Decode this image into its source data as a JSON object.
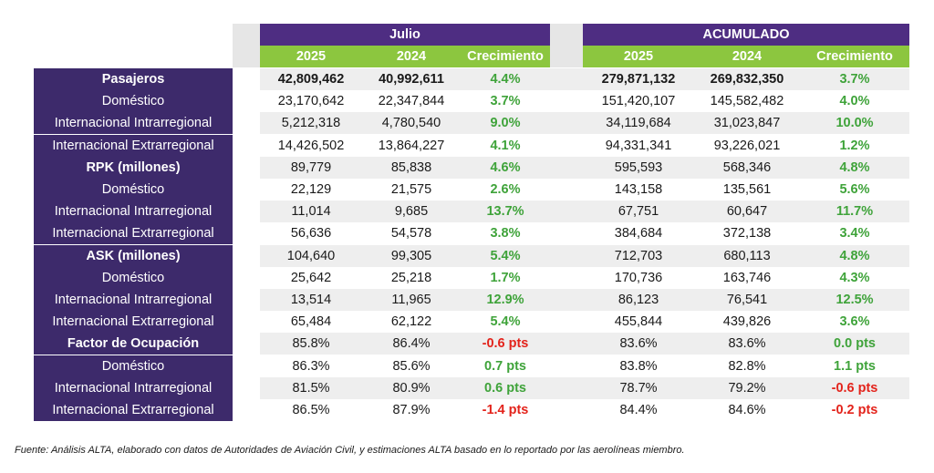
{
  "header": {
    "julio_label": "Julio",
    "acumulado_label": "ACUMULADO",
    "sub": [
      "2025",
      "2024",
      "Crecimiento",
      "2025",
      "2024",
      "Crecimiento"
    ]
  },
  "rows": [
    {
      "label": "Pasajeros",
      "main": true,
      "v": [
        "42,809,462",
        "40,992,611",
        "4.4%",
        "279,871,132",
        "269,832,350",
        "3.7%"
      ]
    },
    {
      "label": "Doméstico",
      "main": false,
      "v": [
        "23,170,642",
        "22,347,844",
        "3.7%",
        "151,420,107",
        "145,582,482",
        "4.0%"
      ]
    },
    {
      "label": "Internacional Intrarregional",
      "main": false,
      "v": [
        "5,212,318",
        "4,780,540",
        "9.0%",
        "34,119,684",
        "31,023,847",
        "10.0%"
      ]
    },
    {
      "label": "Internacional Extrarregional",
      "main": false,
      "v": [
        "14,426,502",
        "13,864,227",
        "4.1%",
        "94,331,341",
        "93,226,021",
        "1.2%"
      ]
    },
    {
      "label": "RPK (millones)",
      "main": true,
      "v": [
        "89,779",
        "85,838",
        "4.6%",
        "595,593",
        "568,346",
        "4.8%"
      ]
    },
    {
      "label": "Doméstico",
      "main": false,
      "v": [
        "22,129",
        "21,575",
        "2.6%",
        "143,158",
        "135,561",
        "5.6%"
      ]
    },
    {
      "label": "Internacional Intrarregional",
      "main": false,
      "v": [
        "11,014",
        "9,685",
        "13.7%",
        "67,751",
        "60,647",
        "11.7%"
      ]
    },
    {
      "label": "Internacional Extrarregional",
      "main": false,
      "v": [
        "56,636",
        "54,578",
        "3.8%",
        "384,684",
        "372,138",
        "3.4%"
      ]
    },
    {
      "label": "ASK (millones)",
      "main": true,
      "v": [
        "104,640",
        "99,305",
        "5.4%",
        "712,703",
        "680,113",
        "4.8%"
      ]
    },
    {
      "label": "Doméstico",
      "main": false,
      "v": [
        "25,642",
        "25,218",
        "1.7%",
        "170,736",
        "163,746",
        "4.3%"
      ]
    },
    {
      "label": "Internacional Intrarregional",
      "main": false,
      "v": [
        "13,514",
        "11,965",
        "12.9%",
        "86,123",
        "76,541",
        "12.5%"
      ]
    },
    {
      "label": "Internacional Extrarregional",
      "main": false,
      "v": [
        "65,484",
        "62,122",
        "5.4%",
        "455,844",
        "439,826",
        "3.6%"
      ]
    },
    {
      "label": "Factor de Ocupación",
      "main": true,
      "v": [
        "85.8%",
        "86.4%",
        "-0.6 pts",
        "83.6%",
        "83.6%",
        "0.0 pts"
      ]
    },
    {
      "label": "Doméstico",
      "main": false,
      "v": [
        "86.3%",
        "85.6%",
        "0.7 pts",
        "83.8%",
        "82.8%",
        "1.1 pts"
      ]
    },
    {
      "label": "Internacional Intrarregional",
      "main": false,
      "v": [
        "81.5%",
        "80.9%",
        "0.6 pts",
        "78.7%",
        "79.2%",
        "-0.6 pts"
      ]
    },
    {
      "label": "Internacional Extrarregional",
      "main": false,
      "v": [
        "86.5%",
        "87.9%",
        "-1.4 pts",
        "84.4%",
        "84.6%",
        "-0.2 pts"
      ]
    }
  ],
  "source_note": "Fuente: Análisis ALTA, elaborado con datos de Autoridades de Aviación Civil,  y estimaciones ALTA basado en lo reportado por las aerolíneas miembro.",
  "colors": {
    "purple_header": "#4e2d82",
    "purple_labels": "#3d2a6b",
    "green_header": "#8cc63f",
    "positive": "#3fa33a",
    "negative": "#e3231b"
  }
}
